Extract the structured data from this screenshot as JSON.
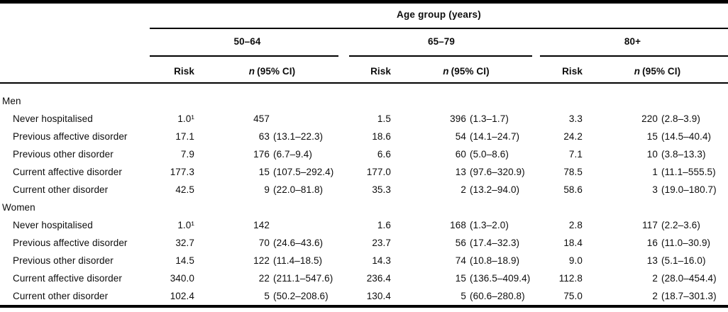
{
  "table": {
    "spanner": "Age group (years)",
    "age_groups": [
      "50–64",
      "65–79",
      "80+"
    ],
    "col_headers": {
      "risk": "Risk",
      "n_italic": "n",
      "n_rest": "(95% CI)"
    },
    "sections": [
      {
        "label": "Men",
        "rows": [
          {
            "label": "Never hospitalised",
            "groups": [
              {
                "risk": "1.0¹",
                "n": "457",
                "ci": ""
              },
              {
                "risk": "1.5",
                "n": "396",
                "ci": "(1.3–1.7)"
              },
              {
                "risk": "3.3",
                "n": "220",
                "ci": "(2.8–3.9)"
              }
            ]
          },
          {
            "label": "Previous affective disorder",
            "groups": [
              {
                "risk": "17.1",
                "n": "63",
                "ci": "(13.1–22.3)"
              },
              {
                "risk": "18.6",
                "n": "54",
                "ci": "(14.1–24.7)"
              },
              {
                "risk": "24.2",
                "n": "15",
                "ci": "(14.5–40.4)"
              }
            ]
          },
          {
            "label": "Previous other disorder",
            "groups": [
              {
                "risk": "7.9",
                "n": "176",
                "ci": "(6.7–9.4)"
              },
              {
                "risk": "6.6",
                "n": "60",
                "ci": "(5.0–8.6)"
              },
              {
                "risk": "7.1",
                "n": "10",
                "ci": "(3.8–13.3)"
              }
            ]
          },
          {
            "label": "Current affective disorder",
            "groups": [
              {
                "risk": "177.3",
                "n": "15",
                "ci": "(107.5–292.4)"
              },
              {
                "risk": "177.0",
                "n": "13",
                "ci": "(97.6–320.9)"
              },
              {
                "risk": "78.5",
                "n": "1",
                "ci": "(11.1–555.5)"
              }
            ]
          },
          {
            "label": "Current other disorder",
            "groups": [
              {
                "risk": "42.5",
                "n": "9",
                "ci": "(22.0–81.8)"
              },
              {
                "risk": "35.3",
                "n": "2",
                "ci": "(13.2–94.0)"
              },
              {
                "risk": "58.6",
                "n": "3",
                "ci": "(19.0–180.7)"
              }
            ]
          }
        ]
      },
      {
        "label": "Women",
        "rows": [
          {
            "label": "Never hospitalised",
            "groups": [
              {
                "risk": "1.0¹",
                "n": "142",
                "ci": ""
              },
              {
                "risk": "1.6",
                "n": "168",
                "ci": "(1.3–2.0)"
              },
              {
                "risk": "2.8",
                "n": "117",
                "ci": "(2.2–3.6)"
              }
            ]
          },
          {
            "label": "Previous affective disorder",
            "groups": [
              {
                "risk": "32.7",
                "n": "70",
                "ci": "(24.6–43.6)"
              },
              {
                "risk": "23.7",
                "n": "56",
                "ci": "(17.4–32.3)"
              },
              {
                "risk": "18.4",
                "n": "16",
                "ci": "(11.0–30.9)"
              }
            ]
          },
          {
            "label": "Previous other disorder",
            "groups": [
              {
                "risk": "14.5",
                "n": "122",
                "ci": "(11.4–18.5)"
              },
              {
                "risk": "14.3",
                "n": "74",
                "ci": "(10.8–18.9)"
              },
              {
                "risk": "9.0",
                "n": "13",
                "ci": "(5.1–16.0)"
              }
            ]
          },
          {
            "label": "Current affective disorder",
            "groups": [
              {
                "risk": "340.0",
                "n": "22",
                "ci": "(211.1–547.6)"
              },
              {
                "risk": "236.4",
                "n": "15",
                "ci": "(136.5–409.4)"
              },
              {
                "risk": "112.8",
                "n": "2",
                "ci": "(28.0–454.4)"
              }
            ]
          },
          {
            "label": "Current other disorder",
            "groups": [
              {
                "risk": "102.4",
                "n": "5",
                "ci": "(50.2–208.6)"
              },
              {
                "risk": "130.4",
                "n": "5",
                "ci": "(60.6–280.8)"
              },
              {
                "risk": "75.0",
                "n": "2",
                "ci": "(18.7–301.3)"
              }
            ]
          }
        ]
      }
    ]
  },
  "colors": {
    "rule": "#000000",
    "text": "#0d0d0d",
    "background": "#ffffff"
  }
}
